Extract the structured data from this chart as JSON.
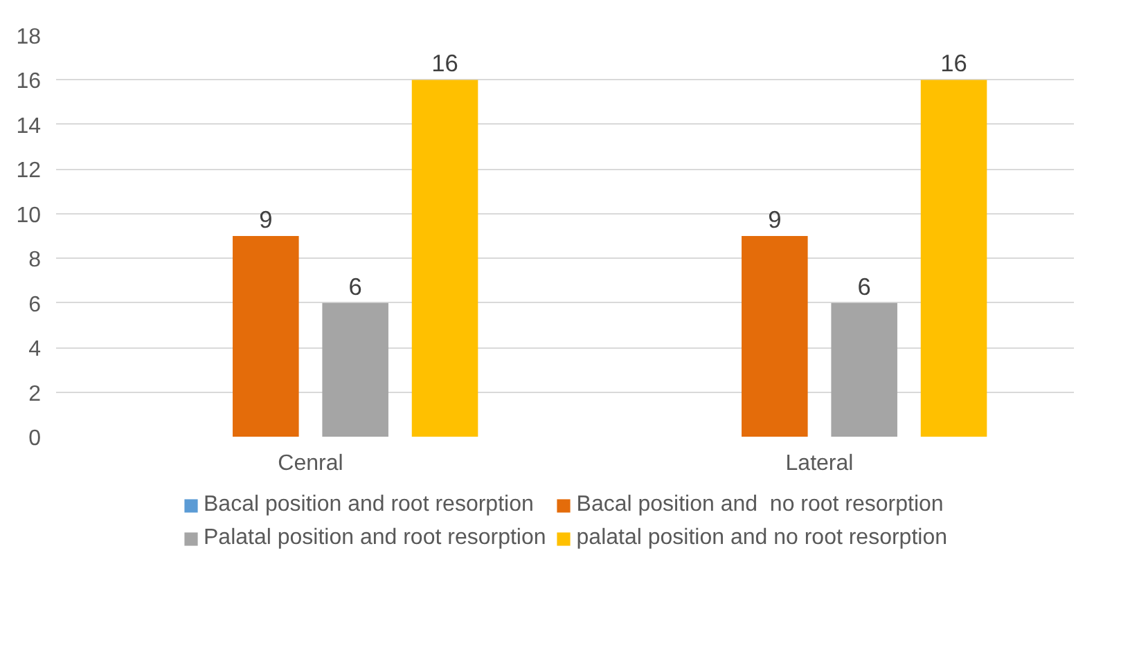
{
  "chart_data": {
    "type": "bar",
    "categories": [
      "Cenral",
      "Lateral"
    ],
    "series": [
      {
        "name": "Bacal position and root resorption",
        "color": "#5b9bd5",
        "values": [
          0,
          0
        ],
        "value_labels": [
          null,
          null
        ]
      },
      {
        "name": "Bacal position and  no root resorption",
        "color": "#e46c0a",
        "values": [
          9,
          9
        ],
        "value_labels": [
          "9",
          "9"
        ]
      },
      {
        "name": "Palatal position and root resorption",
        "color": "#a5a5a5",
        "values": [
          6,
          6
        ],
        "value_labels": [
          "6",
          "6"
        ]
      },
      {
        "name": "palatal position and no root resorption",
        "color": "#ffc000",
        "values": [
          16,
          16
        ],
        "value_labels": [
          "16",
          "16"
        ]
      }
    ],
    "ylim": [
      0,
      18
    ],
    "yticks": [
      0,
      2,
      4,
      6,
      8,
      10,
      12,
      14,
      16,
      18
    ],
    "grid": "y",
    "legend": "bottom"
  }
}
